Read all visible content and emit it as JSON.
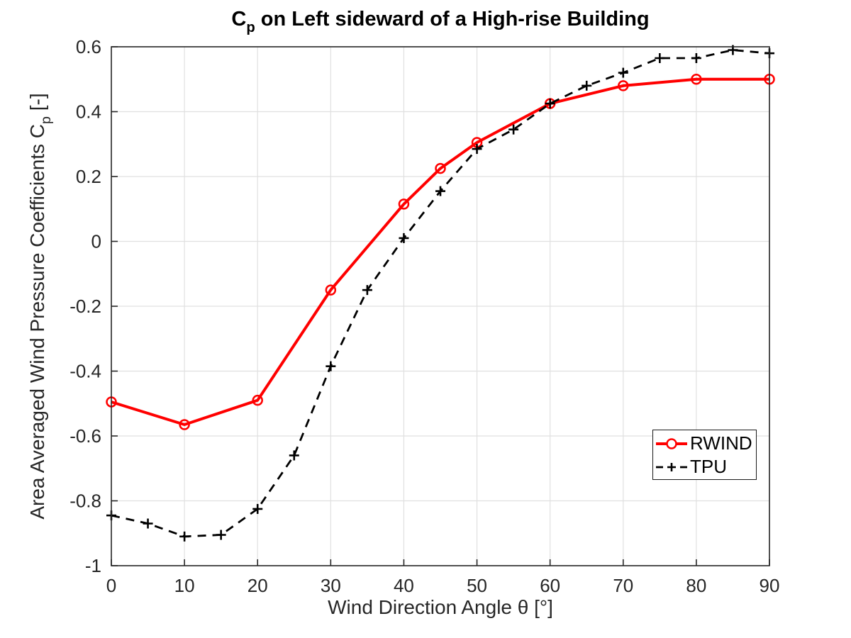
{
  "figure": {
    "title": {
      "prefix": "C",
      "subscript": "p",
      "rest": " on Left sideward of a High-rise Building"
    },
    "ylabel": {
      "main": "Area Averaged Wind Pressure Coefficients C",
      "subscript": "p",
      "end": " [-]"
    }
  },
  "chart_data": {
    "type": "line",
    "title": "C_p on Left sideward of a High-rise Building",
    "xlabel": "Wind Direction Angle θ [°]",
    "ylabel": "Area Averaged Wind Pressure Coefficients C_p [-]",
    "xlim": [
      0,
      90
    ],
    "ylim": [
      -1,
      0.6
    ],
    "xticks": [
      0,
      10,
      20,
      30,
      40,
      50,
      60,
      70,
      80,
      90
    ],
    "yticks": [
      0.6,
      0.4,
      0.2,
      0,
      -0.2,
      -0.4,
      -0.6,
      -0.8,
      -1
    ],
    "grid": true,
    "legend_position": "right-middle",
    "colors": {
      "grid": "#e0e0e0",
      "axis": "#262626",
      "background": "#ffffff"
    },
    "series": [
      {
        "name": "RWIND",
        "color": "#ff0000",
        "line_style": "solid",
        "marker": "circle",
        "x": [
          0,
          10,
          20,
          30,
          40,
          45,
          50,
          60,
          70,
          80,
          90
        ],
        "y": [
          -0.495,
          -0.565,
          -0.49,
          -0.15,
          0.115,
          0.225,
          0.305,
          0.425,
          0.48,
          0.5,
          0.5
        ]
      },
      {
        "name": "TPU",
        "color": "#000000",
        "line_style": "dashed",
        "marker": "plus",
        "x": [
          0,
          5,
          10,
          15,
          20,
          25,
          30,
          35,
          40,
          45,
          50,
          55,
          60,
          65,
          70,
          75,
          80,
          85,
          90
        ],
        "y": [
          -0.845,
          -0.87,
          -0.91,
          -0.905,
          -0.825,
          -0.66,
          -0.385,
          -0.15,
          0.01,
          0.155,
          0.285,
          0.345,
          0.425,
          0.48,
          0.52,
          0.565,
          0.565,
          0.59,
          0.58
        ]
      }
    ]
  }
}
